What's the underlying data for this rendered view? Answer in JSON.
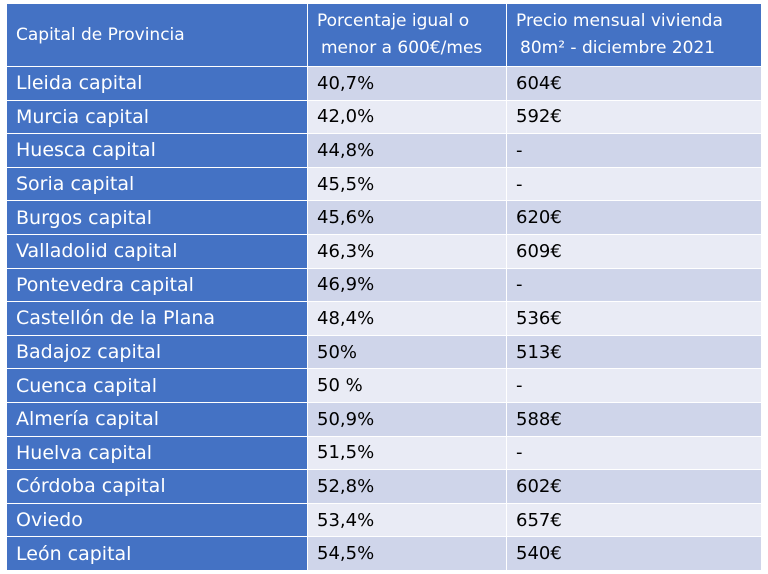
{
  "header": {
    "col1": "Capital de Provincia",
    "col2_line1": "Porcentaje igual o",
    "col2_line2": "menor a 600€/mes",
    "col3_line1": "Precio mensual vivienda",
    "col3_line2": "80m² - diciembre 2021"
  },
  "rows": [
    {
      "city": "Lleida capital",
      "pct": "40,7%",
      "price": "604€"
    },
    {
      "city": "Murcia capital",
      "pct": "42,0%",
      "price": "592€"
    },
    {
      "city": "Huesca capital",
      "pct": "44,8%",
      "price": "-"
    },
    {
      "city": "Soria capital",
      "pct": "45,5%",
      "price": "-"
    },
    {
      "city": "Burgos capital",
      "pct": "45,6%",
      "price": "620€"
    },
    {
      "city": "Valladolid capital",
      "pct": "46,3%",
      "price": "609€"
    },
    {
      "city": "Pontevedra capital",
      "pct": "46,9%",
      "price": "-"
    },
    {
      "city": "Castellón de la Plana",
      "pct": "48,4%",
      "price": "536€"
    },
    {
      "city": "Badajoz capital",
      "pct": "50%",
      "price": "513€"
    },
    {
      "city": "Cuenca capital",
      "pct": "50 %",
      "price": "-"
    },
    {
      "city": "Almería capital",
      "pct": "50,9%",
      "price": "588€"
    },
    {
      "city": "Huelva capital",
      "pct": "51,5%",
      "price": "-"
    },
    {
      "city": "Córdoba capital",
      "pct": "52,8%",
      "price": "602€"
    },
    {
      "city": "Oviedo",
      "pct": "53,4%",
      "price": "657€"
    },
    {
      "city": "León capital",
      "pct": "54,5%",
      "price": "540€"
    }
  ],
  "colors": {
    "header_bg": "#4472c4",
    "row_odd": "#cfd5ea",
    "row_even": "#e9ebf5"
  }
}
